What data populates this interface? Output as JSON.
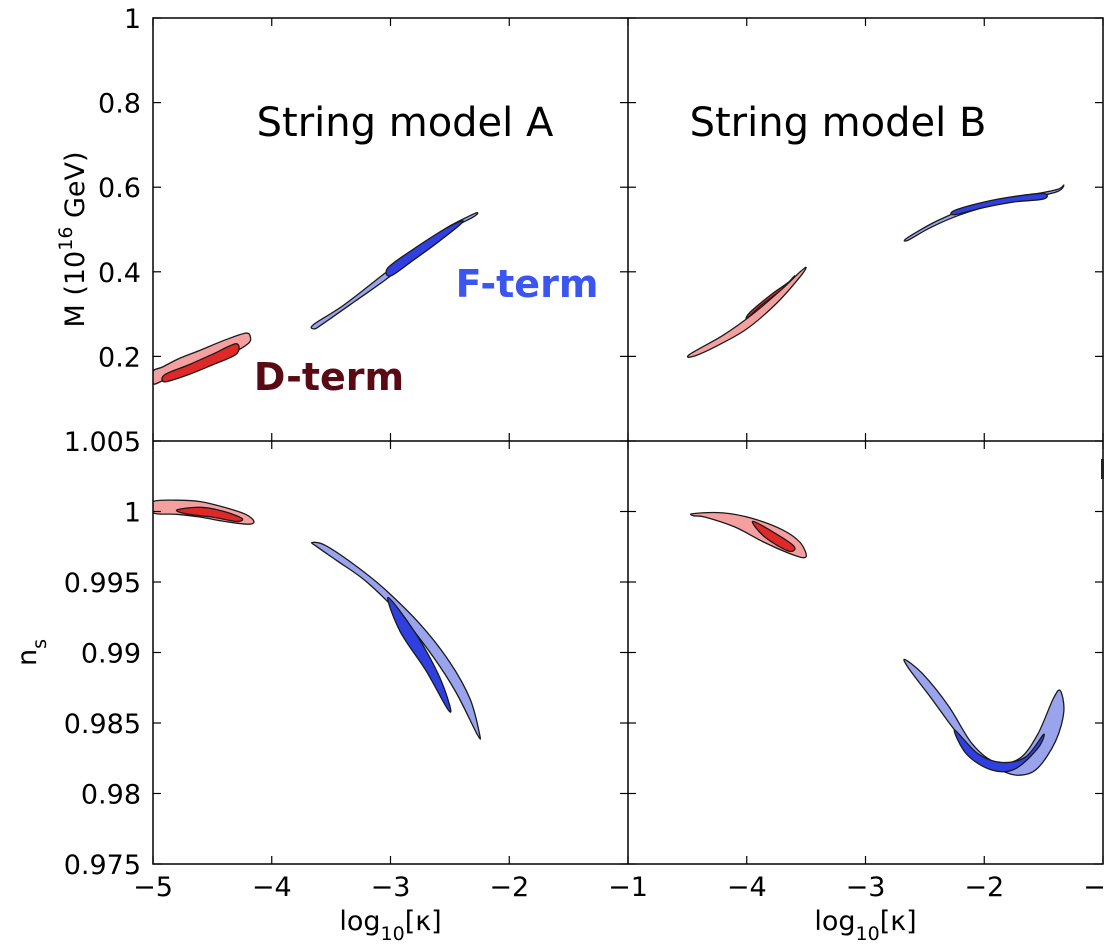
{
  "chart_data": {
    "type": "contour",
    "panels": [
      {
        "id": "top-left",
        "title": "String model A",
        "ylabel": "M (10^16 GeV)",
        "xlim": [
          -5,
          -3
        ],
        "ylim": [
          0,
          1
        ],
        "yticks": [
          "0.2",
          "0.4",
          "0.6",
          "0.8",
          "1"
        ],
        "annotations": [
          {
            "text": "F-term",
            "color": "#3b55f0"
          },
          {
            "text": "D-term",
            "color": "#5a0a14"
          }
        ],
        "contours": [
          {
            "name": "D-term",
            "color": "#e83030",
            "outer": {
              "x": [
                -5.0,
                -4.92,
                -4.78,
                -4.6,
                -4.4,
                -4.22,
                -4.18,
                -4.2,
                -4.35,
                -4.55,
                -4.75,
                -4.9,
                -5.0
              ],
              "y": [
                0.165,
                0.175,
                0.195,
                0.215,
                0.238,
                0.255,
                0.245,
                0.23,
                0.205,
                0.182,
                0.16,
                0.145,
                0.135
              ]
            },
            "inner": {
              "x": [
                -4.9,
                -4.7,
                -4.5,
                -4.3,
                -4.3,
                -4.5,
                -4.7,
                -4.9
              ],
              "y": [
                0.157,
                0.18,
                0.205,
                0.23,
                0.205,
                0.18,
                0.157,
                0.14
              ]
            }
          },
          {
            "name": "F-term",
            "color": "#3b49e0",
            "outer": {
              "x": [
                -3.65,
                -3.4,
                -3.1,
                -2.8,
                -2.55,
                -2.35,
                -2.27,
                -2.3,
                -2.5,
                -2.75,
                -3.0,
                -3.3,
                -3.58,
                -3.64
              ],
              "y": [
                0.275,
                0.32,
                0.385,
                0.45,
                0.5,
                0.53,
                0.54,
                0.53,
                0.5,
                0.45,
                0.39,
                0.33,
                0.275,
                0.265
              ]
            },
            "inner": {
              "x": [
                -3.02,
                -2.8,
                -2.55,
                -2.4,
                -2.42,
                -2.6,
                -2.82,
                -3.0
              ],
              "y": [
                0.41,
                0.455,
                0.5,
                0.52,
                0.51,
                0.47,
                0.425,
                0.39
              ]
            }
          }
        ]
      },
      {
        "id": "top-right",
        "title": "String model B",
        "xlim": [
          -5,
          -1
        ],
        "ylim": [
          0,
          1
        ],
        "contours": [
          {
            "name": "D-term",
            "color": "#e83030",
            "outer": {
              "x": [
                -4.48,
                -4.2,
                -3.95,
                -3.7,
                -3.55,
                -3.5,
                -3.56,
                -3.75,
                -4.0,
                -4.25,
                -4.45
              ],
              "y": [
                0.205,
                0.25,
                0.3,
                0.36,
                0.4,
                0.41,
                0.385,
                0.325,
                0.265,
                0.225,
                0.2
              ]
            },
            "inner": {
              "x": [
                -3.97,
                -3.8,
                -3.65,
                -3.6,
                -3.7,
                -3.88,
                -4.0
              ],
              "y": [
                0.305,
                0.345,
                0.375,
                0.39,
                0.36,
                0.32,
                0.29
              ]
            }
          },
          {
            "name": "F-term",
            "color": "#3b49e0",
            "outer": {
              "x": [
                -2.65,
                -2.4,
                -2.1,
                -1.8,
                -1.55,
                -1.38,
                -1.33,
                -1.38,
                -1.6,
                -1.9,
                -2.2,
                -2.45,
                -2.64
              ],
              "y": [
                0.48,
                0.52,
                0.555,
                0.575,
                0.585,
                0.595,
                0.605,
                0.59,
                0.575,
                0.56,
                0.535,
                0.505,
                0.475
              ]
            },
            "inner": {
              "x": [
                -2.25,
                -2.0,
                -1.75,
                -1.5,
                -1.5,
                -1.75,
                -2.0,
                -2.25
              ],
              "y": [
                0.545,
                0.565,
                0.578,
                0.585,
                0.572,
                0.565,
                0.552,
                0.535
              ]
            }
          }
        ]
      },
      {
        "id": "bottom-left",
        "xlabel": "log10[κ]",
        "ylabel": "n_s",
        "xlim": [
          -5,
          -1
        ],
        "ylim": [
          0.975,
          1.005
        ],
        "yticks": [
          "0.975",
          "0.98",
          "0.985",
          "0.99",
          "0.995",
          "1",
          "1.005"
        ],
        "xticks": [
          "−5",
          "−4",
          "−3",
          "−2",
          "−1"
        ],
        "contours": [
          {
            "name": "D-term",
            "color": "#e83030",
            "outer": {
              "x": [
                -5.0,
                -4.8,
                -4.6,
                -4.4,
                -4.22,
                -4.15,
                -4.2,
                -4.4,
                -4.6,
                -4.8,
                -5.0
              ],
              "y": [
                1.0007,
                1.0008,
                1.0007,
                1.0003,
                0.9998,
                0.9993,
                0.9991,
                0.9993,
                0.9996,
                0.9998,
                0.9999
              ]
            },
            "inner": {
              "x": [
                -4.8,
                -4.6,
                -4.4,
                -4.25,
                -4.3,
                -4.5,
                -4.7
              ],
              "y": [
                1.0001,
                1.0003,
                1.0,
                0.9995,
                0.9993,
                0.9996,
                0.9998
              ]
            }
          },
          {
            "name": "F-term",
            "color": "#3b49e0",
            "outer": {
              "x": [
                -3.66,
                -3.55,
                -3.3,
                -3.05,
                -2.75,
                -2.5,
                -2.33,
                -2.25,
                -2.27,
                -2.45,
                -2.65,
                -2.9,
                -3.2,
                -3.45,
                -3.62
              ],
              "y": [
                0.9978,
                0.9976,
                0.9962,
                0.9945,
                0.992,
                0.9893,
                0.9867,
                0.9842,
                0.9842,
                0.9872,
                0.9898,
                0.9925,
                0.995,
                0.9965,
                0.9975
              ]
            },
            "inner": {
              "x": [
                -3.02,
                -2.8,
                -2.6,
                -2.5,
                -2.52,
                -2.7,
                -2.92
              ],
              "y": [
                0.9939,
                0.9915,
                0.9885,
                0.9862,
                0.986,
                0.9887,
                0.9915
              ]
            }
          }
        ]
      },
      {
        "id": "bottom-right",
        "xlabel": "log10[κ]",
        "xlim": [
          -5,
          -1
        ],
        "ylim": [
          0.975,
          1.005
        ],
        "xticks": [
          "−4",
          "−3",
          "−2",
          "−1"
        ],
        "contours": [
          {
            "name": "D-term",
            "color": "#e83030",
            "outer": {
              "x": [
                -4.45,
                -4.2,
                -3.95,
                -3.7,
                -3.55,
                -3.5,
                -3.6,
                -3.85,
                -4.1,
                -4.35,
                -4.45
              ],
              "y": [
                0.99985,
                0.9999,
                0.9995,
                0.9987,
                0.9978,
                0.9968,
                0.9969,
                0.9978,
                0.9989,
                0.9996,
                0.9997
              ]
            },
            "inner": {
              "x": [
                -3.95,
                -3.75,
                -3.6,
                -3.65,
                -3.85
              ],
              "y": [
                0.9993,
                0.9984,
                0.9975,
                0.9972,
                0.9982
              ]
            }
          },
          {
            "name": "F-term",
            "color": "#3b49e0",
            "outer": {
              "x": [
                -2.67,
                -2.52,
                -2.3,
                -2.1,
                -1.9,
                -1.7,
                -1.55,
                -1.42,
                -1.36,
                -1.33,
                -1.4,
                -1.55,
                -1.7,
                -1.85,
                -2.05,
                -2.25,
                -2.45,
                -2.63
              ],
              "y": [
                0.9895,
                0.9885,
                0.9862,
                0.9835,
                0.9822,
                0.9825,
                0.9842,
                0.9867,
                0.9873,
                0.9858,
                0.9837,
                0.9818,
                0.9813,
                0.9816,
                0.9825,
                0.9845,
                0.9868,
                0.9888
              ]
            },
            "inner": {
              "x": [
                -2.25,
                -2.05,
                -1.85,
                -1.65,
                -1.5,
                -1.55,
                -1.75,
                -1.95,
                -2.15
              ],
              "y": [
                0.9845,
                0.9828,
                0.9822,
                0.9826,
                0.9842,
                0.9832,
                0.9817,
                0.9817,
                0.9828
              ]
            }
          }
        ]
      }
    ]
  }
}
